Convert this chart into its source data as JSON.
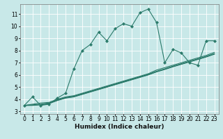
{
  "xlabel": "Humidex (Indice chaleur)",
  "bg_color": "#c8e8e8",
  "grid_color": "#ffffff",
  "line_color": "#2a7a6a",
  "xlim": [
    -0.5,
    23.5
  ],
  "ylim": [
    2.8,
    11.8
  ],
  "xtick_labels": [
    "0",
    "1",
    "2",
    "3",
    "4",
    "5",
    "6",
    "7",
    "8",
    "9",
    "10",
    "11",
    "12",
    "13",
    "14",
    "15",
    "16",
    "17",
    "18",
    "19",
    "20",
    "21",
    "22",
    "23"
  ],
  "yticks": [
    3,
    4,
    5,
    6,
    7,
    8,
    9,
    10,
    11
  ],
  "series": [
    [
      3.5,
      4.2,
      3.5,
      3.6,
      4.1,
      4.5,
      6.5,
      8.0,
      8.5,
      9.5,
      8.8,
      9.8,
      10.2,
      10.0,
      11.1,
      11.4,
      10.3,
      7.0,
      8.1,
      7.8,
      7.0,
      6.8,
      8.8,
      8.8
    ],
    [
      3.5,
      3.6,
      3.7,
      3.75,
      4.0,
      4.2,
      4.3,
      4.5,
      4.7,
      4.9,
      5.1,
      5.3,
      5.5,
      5.7,
      5.9,
      6.1,
      6.4,
      6.6,
      6.8,
      7.0,
      7.2,
      7.4,
      7.6,
      7.85
    ],
    [
      3.5,
      3.55,
      3.6,
      3.7,
      3.95,
      4.15,
      4.25,
      4.45,
      4.65,
      4.85,
      5.05,
      5.25,
      5.45,
      5.65,
      5.85,
      6.05,
      6.3,
      6.5,
      6.72,
      6.92,
      7.12,
      7.32,
      7.52,
      7.75
    ],
    [
      3.5,
      3.52,
      3.57,
      3.67,
      3.92,
      4.12,
      4.22,
      4.42,
      4.62,
      4.82,
      5.02,
      5.22,
      5.42,
      5.62,
      5.82,
      6.02,
      6.27,
      6.47,
      6.69,
      6.89,
      7.09,
      7.29,
      7.49,
      7.72
    ],
    [
      3.5,
      3.5,
      3.55,
      3.65,
      3.9,
      4.1,
      4.2,
      4.4,
      4.6,
      4.8,
      5.0,
      5.2,
      5.4,
      5.6,
      5.8,
      6.0,
      6.25,
      6.45,
      6.67,
      6.87,
      7.07,
      7.27,
      7.47,
      7.7
    ]
  ],
  "marker_series": 0,
  "marker": "D",
  "markersize": 2.2,
  "linewidth": 0.8,
  "tick_fontsize": 5.5,
  "xlabel_fontsize": 6.5
}
